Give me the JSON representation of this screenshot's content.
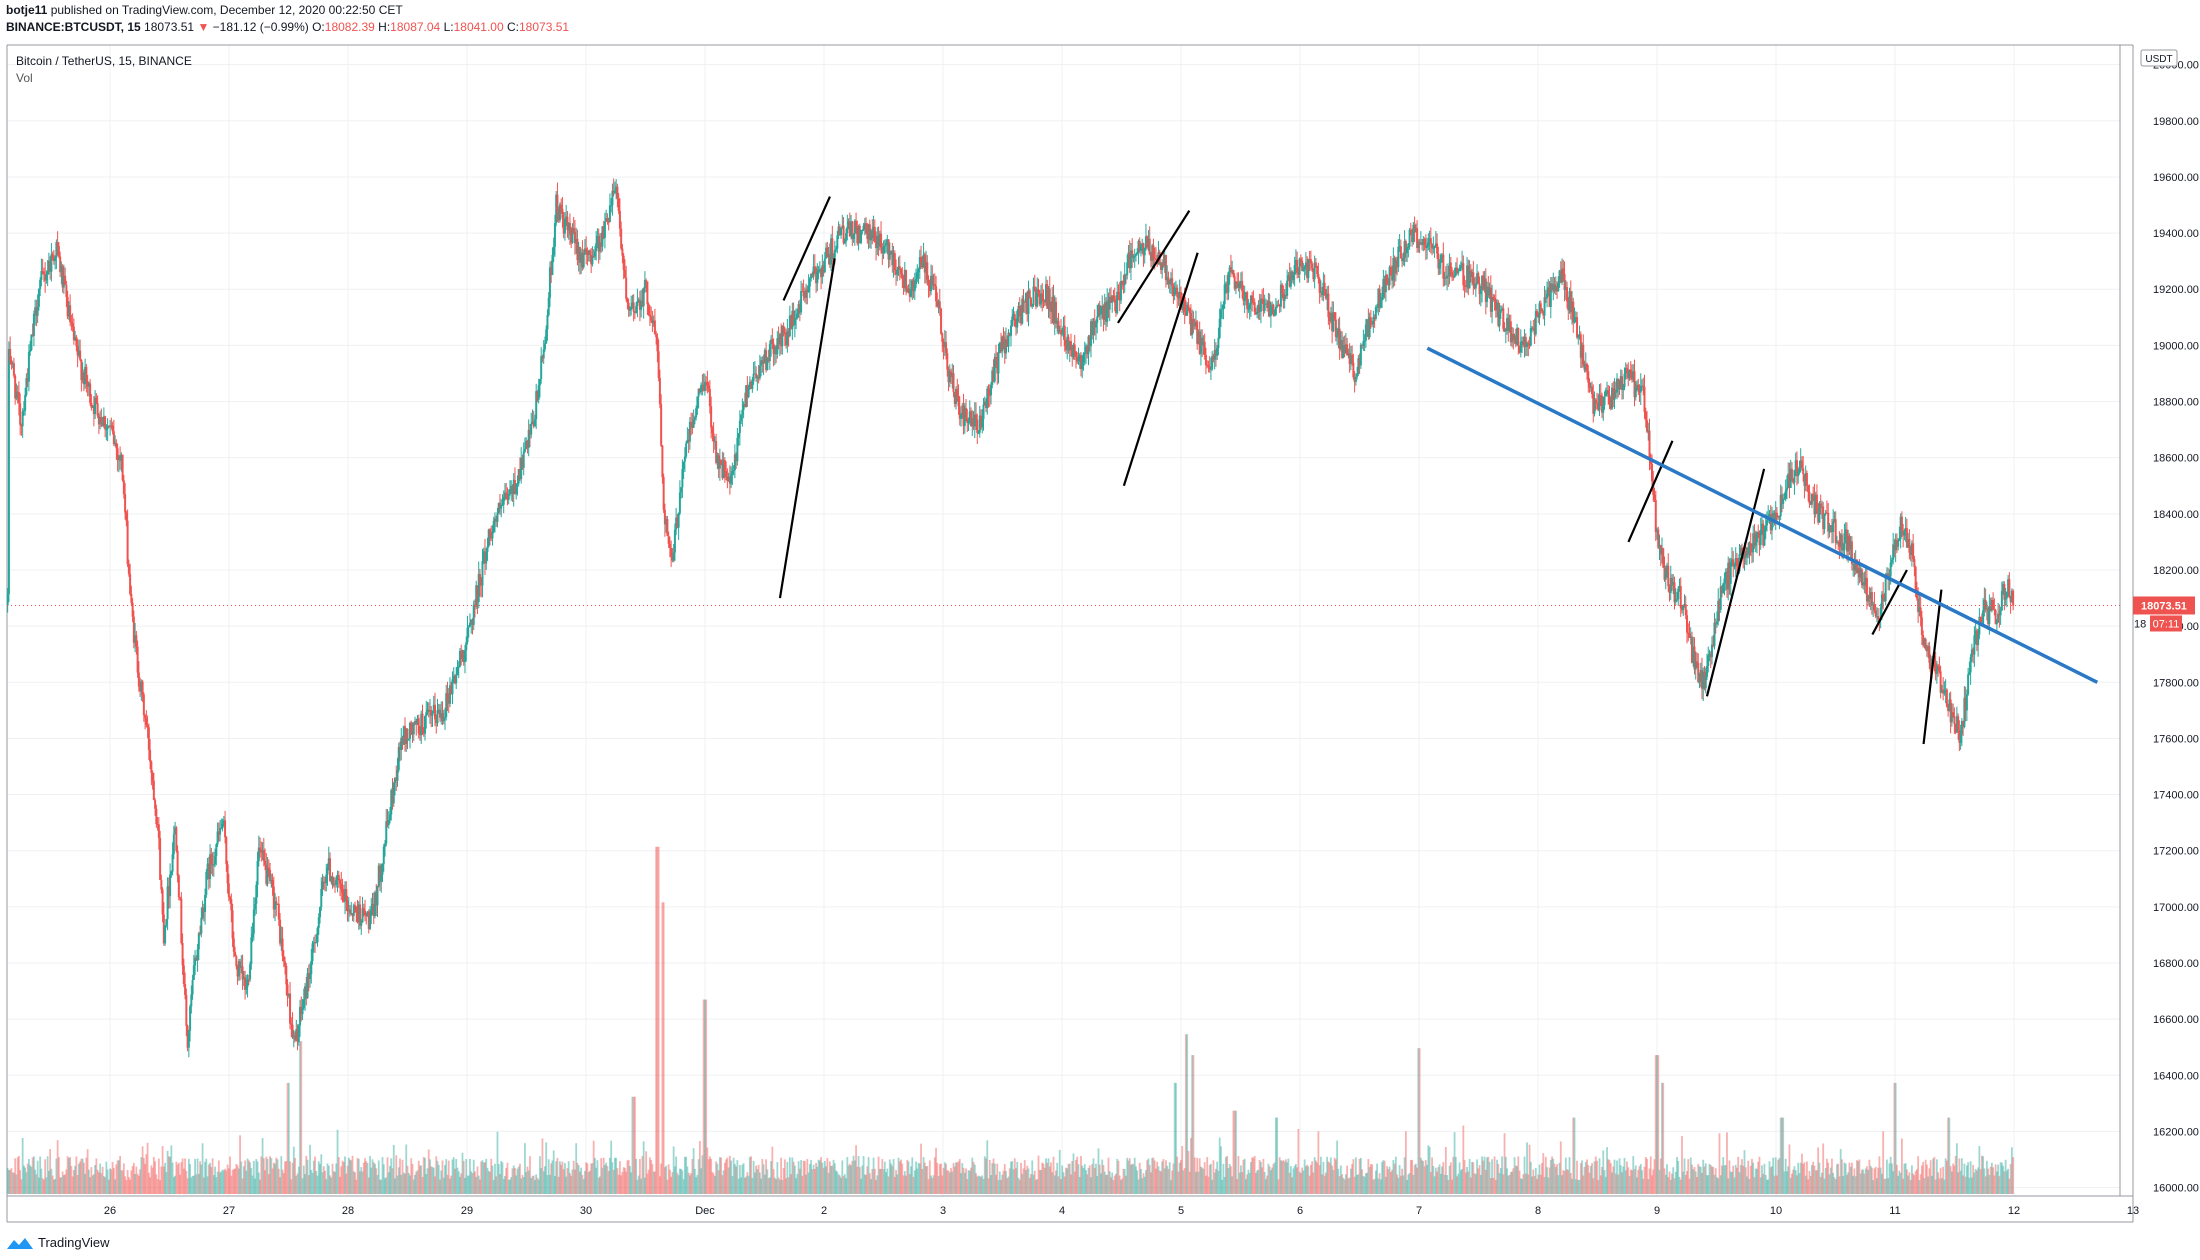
{
  "header": {
    "author": "botje11",
    "published_text": " published on TradingView.com, December 12, 2020 00:22:50 CET",
    "symbol": "BINANCE:BTCUSDT, 15",
    "last": "18073.51",
    "change_arrow": "▼",
    "change": "−181.12 (−0.99%)",
    "open_label": "O:",
    "open": "18082.39",
    "high_label": "H:",
    "high": "18087.04",
    "low_label": "L:",
    "low": "18041.00",
    "close_label": "C:",
    "close": "18073.51"
  },
  "legend": {
    "title": "Bitcoin / TetherUS, 15, BINANCE",
    "volume": "Vol"
  },
  "currency_badge": "USDT",
  "price_tag": "18073.51",
  "countdown_tag": "07:11",
  "countdown_prefix": "18",
  "brand": "TradingView",
  "colors": {
    "up": "#26a69a",
    "down": "#ef5350",
    "trendline": "#000000",
    "resistance": "#2979c7",
    "price_line": "#ef5350"
  },
  "chart_data": {
    "type": "candlestick",
    "title": "Bitcoin / TetherUS, 15, BINANCE",
    "x_axis": {
      "tick_labels": [
        "26",
        "27",
        "28",
        "29",
        "30",
        "Dec",
        "2",
        "3",
        "4",
        "5",
        "6",
        "7",
        "8",
        "9",
        "10",
        "11",
        "12",
        "13"
      ],
      "tick_day_index": [
        0,
        1,
        2,
        3,
        4,
        5,
        6,
        7,
        8,
        9,
        10,
        11,
        12,
        13,
        14,
        15,
        16,
        17
      ]
    },
    "y_axis": {
      "range": [
        15970,
        20070
      ],
      "ticks": [
        16000,
        16200,
        16400,
        16600,
        16800,
        17000,
        17200,
        17400,
        17600,
        17800,
        18000,
        18200,
        18400,
        18600,
        18800,
        19000,
        19200,
        19400,
        19600,
        19800,
        20000
      ],
      "tick_labels": [
        "16000.00",
        "16200.00",
        "16400.00",
        "16600.00",
        "16800.00",
        "17000.00",
        "17200.00",
        "17400.00",
        "17600.00",
        "17800.00",
        "18000.00",
        "18200.00",
        "18400.00",
        "18600.00",
        "18800.00",
        "19000.00",
        "19200.00",
        "19400.00",
        "19600.00",
        "19800.00",
        "20000.00"
      ],
      "grid": true
    },
    "x_range_days": [
      -0.86,
      17.1
    ],
    "price_path": [
      [
        -0.85,
        19000
      ],
      [
        -0.75,
        18720
      ],
      [
        -0.6,
        19200
      ],
      [
        -0.45,
        19350
      ],
      [
        -0.3,
        19000
      ],
      [
        -0.15,
        18800
      ],
      [
        0.0,
        18700
      ],
      [
        0.1,
        18580
      ],
      [
        0.18,
        18050
      ],
      [
        0.25,
        17800
      ],
      [
        0.32,
        17600
      ],
      [
        0.4,
        17300
      ],
      [
        0.45,
        16900
      ],
      [
        0.55,
        17300
      ],
      [
        0.65,
        16500
      ],
      [
        0.7,
        16750
      ],
      [
        0.82,
        17120
      ],
      [
        0.95,
        17300
      ],
      [
        1.05,
        16800
      ],
      [
        1.15,
        16700
      ],
      [
        1.25,
        17200
      ],
      [
        1.4,
        17000
      ],
      [
        1.55,
        16500
      ],
      [
        1.7,
        16820
      ],
      [
        1.82,
        17150
      ],
      [
        2.0,
        17000
      ],
      [
        2.2,
        16950
      ],
      [
        2.45,
        17600
      ],
      [
        2.62,
        17650
      ],
      [
        2.8,
        17700
      ],
      [
        3.0,
        17950
      ],
      [
        3.2,
        18350
      ],
      [
        3.4,
        18500
      ],
      [
        3.55,
        18700
      ],
      [
        3.65,
        19000
      ],
      [
        3.75,
        19500
      ],
      [
        3.85,
        19400
      ],
      [
        4.0,
        19300
      ],
      [
        4.15,
        19400
      ],
      [
        4.25,
        19600
      ],
      [
        4.35,
        19100
      ],
      [
        4.5,
        19200
      ],
      [
        4.6,
        19000
      ],
      [
        4.65,
        18450
      ],
      [
        4.72,
        18200
      ],
      [
        4.82,
        18600
      ],
      [
        5.0,
        18900
      ],
      [
        5.1,
        18600
      ],
      [
        5.22,
        18500
      ],
      [
        5.35,
        18850
      ],
      [
        5.5,
        18950
      ],
      [
        5.7,
        19050
      ],
      [
        5.85,
        19200
      ],
      [
        6.0,
        19300
      ],
      [
        6.15,
        19400
      ],
      [
        6.3,
        19400
      ],
      [
        6.45,
        19380
      ],
      [
        6.6,
        19300
      ],
      [
        6.72,
        19200
      ],
      [
        6.82,
        19300
      ],
      [
        6.95,
        19150
      ],
      [
        7.05,
        18900
      ],
      [
        7.15,
        18750
      ],
      [
        7.3,
        18700
      ],
      [
        7.42,
        18900
      ],
      [
        7.55,
        19050
      ],
      [
        7.7,
        19150
      ],
      [
        7.85,
        19200
      ],
      [
        8.0,
        19050
      ],
      [
        8.15,
        18950
      ],
      [
        8.3,
        19100
      ],
      [
        8.45,
        19150
      ],
      [
        8.55,
        19300
      ],
      [
        8.7,
        19350
      ],
      [
        8.85,
        19300
      ],
      [
        9.0,
        19150
      ],
      [
        9.12,
        19050
      ],
      [
        9.25,
        18900
      ],
      [
        9.4,
        19250
      ],
      [
        9.6,
        19150
      ],
      [
        9.8,
        19150
      ],
      [
        10.0,
        19300
      ],
      [
        10.15,
        19250
      ],
      [
        10.3,
        19050
      ],
      [
        10.45,
        18900
      ],
      [
        10.6,
        19100
      ],
      [
        10.8,
        19300
      ],
      [
        10.95,
        19400
      ],
      [
        11.1,
        19350
      ],
      [
        11.2,
        19280
      ],
      [
        11.4,
        19250
      ],
      [
        11.55,
        19200
      ],
      [
        11.75,
        19050
      ],
      [
        11.9,
        19000
      ],
      [
        12.05,
        19150
      ],
      [
        12.2,
        19250
      ],
      [
        12.3,
        19100
      ],
      [
        12.45,
        18800
      ],
      [
        12.6,
        18800
      ],
      [
        12.75,
        18900
      ],
      [
        12.9,
        18800
      ],
      [
        13.0,
        18300
      ],
      [
        13.1,
        18150
      ],
      [
        13.2,
        18100
      ],
      [
        13.3,
        17900
      ],
      [
        13.4,
        17780
      ],
      [
        13.55,
        18150
      ],
      [
        13.7,
        18250
      ],
      [
        13.85,
        18300
      ],
      [
        14.0,
        18400
      ],
      [
        14.1,
        18500
      ],
      [
        14.2,
        18600
      ],
      [
        14.3,
        18450
      ],
      [
        14.45,
        18350
      ],
      [
        14.6,
        18300
      ],
      [
        14.75,
        18150
      ],
      [
        14.85,
        18000
      ],
      [
        14.95,
        18200
      ],
      [
        15.05,
        18350
      ],
      [
        15.15,
        18250
      ],
      [
        15.25,
        17900
      ],
      [
        15.35,
        17850
      ],
      [
        15.45,
        17700
      ],
      [
        15.55,
        17620
      ],
      [
        15.65,
        17900
      ],
      [
        15.75,
        18050
      ],
      [
        15.85,
        18050
      ],
      [
        15.95,
        18150
      ],
      [
        16.0,
        18073.51
      ]
    ],
    "last_price": 18073.51,
    "volume_range": [
      0,
      720
    ],
    "volume_spikes": [
      [
        1.6,
        220
      ],
      [
        1.5,
        160
      ],
      [
        4.6,
        500
      ],
      [
        4.65,
        420
      ],
      [
        5.0,
        280
      ],
      [
        4.4,
        140
      ],
      [
        9.05,
        230
      ],
      [
        9.1,
        200
      ],
      [
        8.95,
        160
      ],
      [
        11.0,
        210
      ],
      [
        12.3,
        110
      ],
      [
        13.0,
        200
      ],
      [
        13.05,
        160
      ],
      [
        14.05,
        110
      ],
      [
        15.0,
        160
      ],
      [
        15.45,
        110
      ],
      [
        9.45,
        120
      ],
      [
        9.8,
        110
      ]
    ],
    "annotations": {
      "trendlines": [
        {
          "from": [
            5.66,
            19160
          ],
          "to": [
            6.05,
            19530
          ]
        },
        {
          "from": [
            5.63,
            18100
          ],
          "to": [
            6.09,
            19310
          ]
        },
        {
          "from": [
            8.47,
            19080
          ],
          "to": [
            9.07,
            19480
          ]
        },
        {
          "from": [
            8.52,
            18500
          ],
          "to": [
            9.14,
            19330
          ]
        },
        {
          "from": [
            12.76,
            18300
          ],
          "to": [
            13.13,
            18660
          ]
        },
        {
          "from": [
            13.42,
            17750
          ],
          "to": [
            13.9,
            18560
          ]
        },
        {
          "from": [
            14.81,
            17970
          ],
          "to": [
            15.1,
            18200
          ]
        },
        {
          "from": [
            15.24,
            17580
          ],
          "to": [
            15.39,
            18130
          ]
        }
      ],
      "resistance_line": {
        "from": [
          11.07,
          18990
        ],
        "to": [
          16.7,
          17800
        ]
      }
    }
  }
}
